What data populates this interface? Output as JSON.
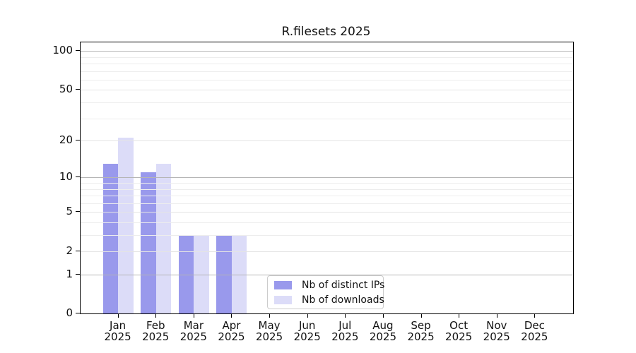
{
  "chart_data": {
    "type": "bar",
    "title": "R.filesets 2025",
    "categories": [
      "Jan",
      "Feb",
      "Mar",
      "Apr",
      "May",
      "Jun",
      "Jul",
      "Aug",
      "Sep",
      "Oct",
      "Nov",
      "Dec"
    ],
    "category_year": "2025",
    "series": [
      {
        "name": "Nb of distinct IPs",
        "color": "#9999ec",
        "values": [
          13,
          11,
          3,
          3,
          0,
          0,
          0,
          0,
          0,
          0,
          0,
          0
        ]
      },
      {
        "name": "Nb of downloads",
        "color": "#dcdcf8",
        "values": [
          21,
          13,
          3,
          3,
          0,
          0,
          0,
          0,
          0,
          0,
          0,
          0
        ]
      }
    ],
    "yscale": "log1p",
    "yticks": [
      0,
      1,
      2,
      5,
      10,
      20,
      50,
      100
    ],
    "ylim": [
      0,
      115
    ],
    "grid": {
      "decade_values": [
        1,
        10,
        100
      ],
      "mid_values": [
        2,
        5,
        20,
        50
      ],
      "minor_values": [
        3,
        4,
        6,
        7,
        8,
        9,
        30,
        40,
        60,
        70,
        80,
        90
      ]
    },
    "legend_position": "lower center-right",
    "colors": {
      "spine": "#000000",
      "grid_decade": "#b5b5b5",
      "grid_mid": "#e4e4e4",
      "grid_minor": "#ededed",
      "text": "#111111",
      "background": "#ffffff"
    }
  }
}
